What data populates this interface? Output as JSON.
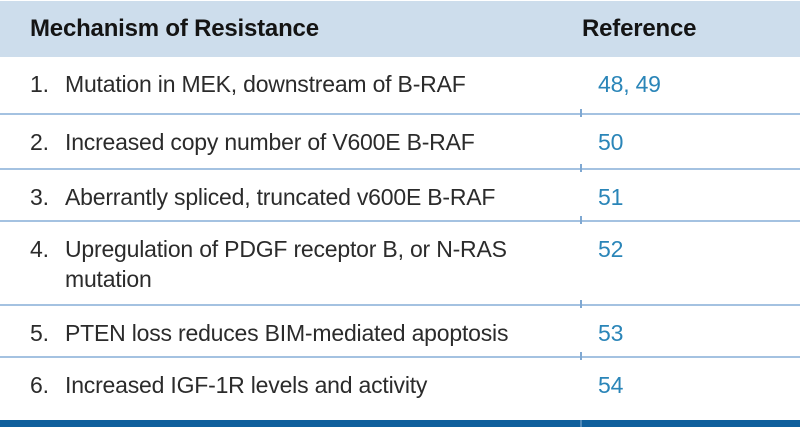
{
  "table": {
    "columns": {
      "mechanism": "Mechanism of Resistance",
      "reference": "Reference"
    },
    "rows": [
      {
        "num": "1.",
        "mechanism": "Mutation in MEK, downstream of B-RAF",
        "refs": [
          "48",
          "49"
        ]
      },
      {
        "num": "2.",
        "mechanism": "Increased copy number of V600E B-RAF",
        "refs": [
          "50"
        ]
      },
      {
        "num": "3.",
        "mechanism": "Aberrantly spliced, truncated v600E B-RAF",
        "refs": [
          "51"
        ]
      },
      {
        "num": "4.",
        "mechanism": "Upregulation of PDGF receptor B, or N-RAS mutation",
        "refs": [
          "52"
        ]
      },
      {
        "num": "5.",
        "mechanism": "PTEN loss reduces BIM-mediated apoptosis",
        "refs": [
          "53"
        ]
      },
      {
        "num": "6.",
        "mechanism": "Increased IGF-1R levels and activity",
        "refs": [
          "54"
        ]
      }
    ],
    "ref_separator": ", "
  },
  "colors": {
    "header_bg": "#cdddec",
    "separator_line": "#a4c2e1",
    "bottom_bar": "#0f5f9c",
    "reference_link": "#2a85b8",
    "body_text": "#2b2b2b"
  }
}
